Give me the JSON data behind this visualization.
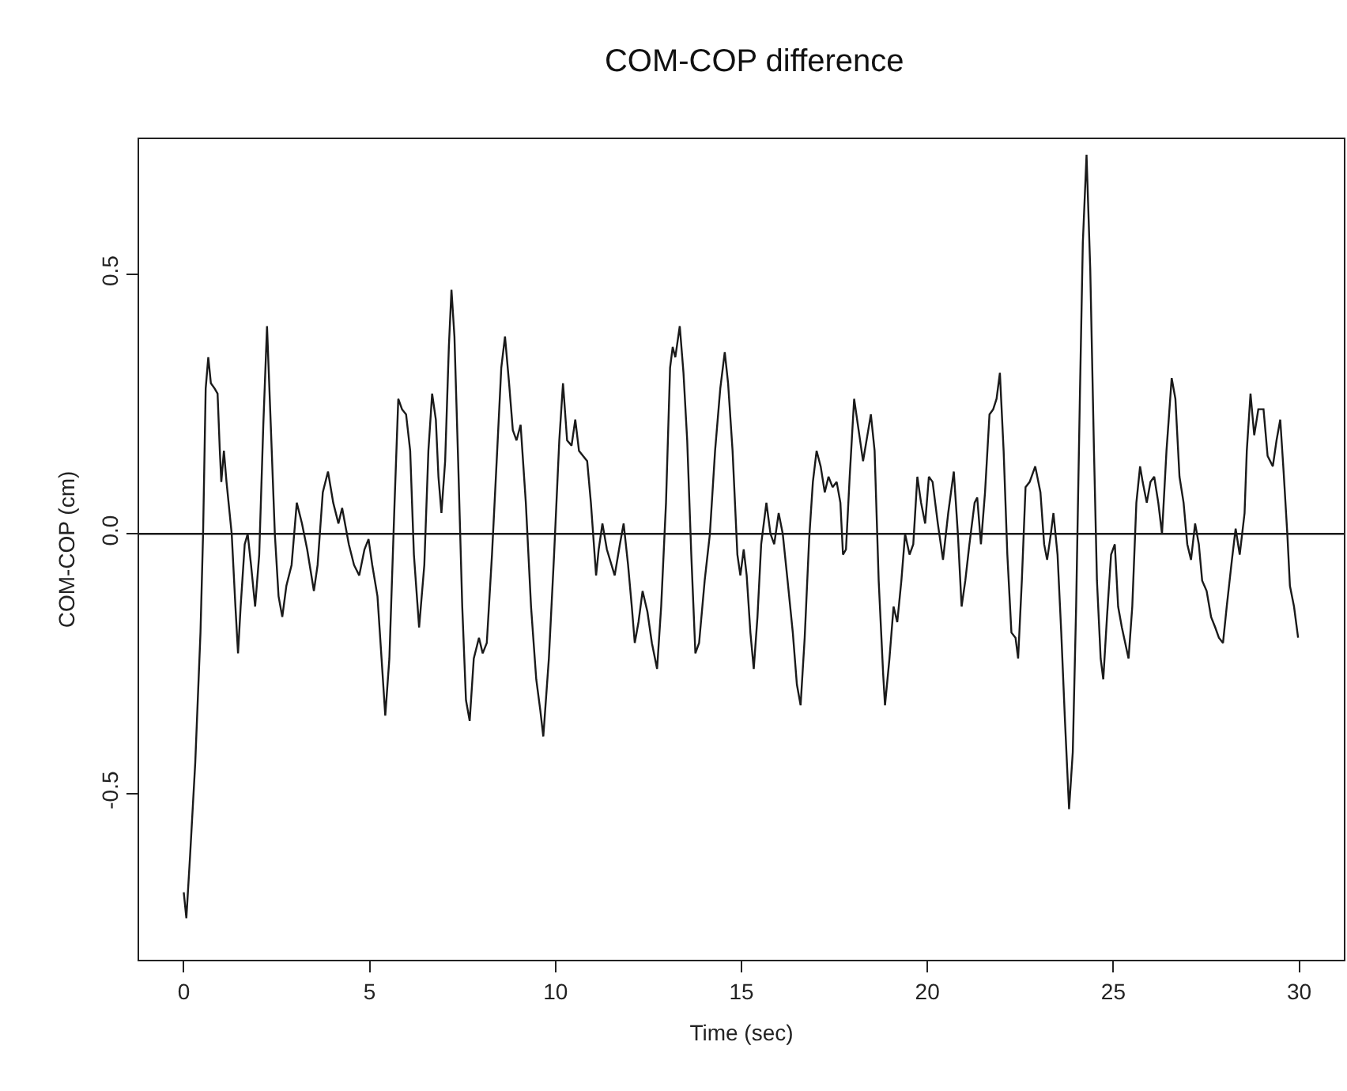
{
  "chart_data": {
    "type": "line",
    "title": "COM-COP difference",
    "xlabel": "Time (sec)",
    "ylabel": "COM-COP (cm)",
    "x": [
      0,
      0.07,
      0.17,
      0.31,
      0.45,
      0.52,
      0.59,
      0.66,
      0.73,
      0.83,
      0.91,
      0.97,
      1.01,
      1.08,
      1.15,
      1.29,
      1.39,
      1.46,
      1.53,
      1.64,
      1.72,
      1.81,
      1.92,
      2.03,
      2.14,
      2.24,
      2.34,
      2.45,
      2.55,
      2.65,
      2.76,
      2.9,
      3.04,
      3.18,
      3.32,
      3.5,
      3.6,
      3.74,
      3.88,
      4.02,
      4.16,
      4.26,
      4.44,
      4.58,
      4.72,
      4.86,
      4.97,
      5.07,
      5.21,
      5.32,
      5.42,
      5.53,
      5.67,
      5.77,
      5.87,
      5.98,
      6.09,
      6.19,
      6.33,
      6.47,
      6.58,
      6.68,
      6.78,
      6.85,
      6.93,
      7.03,
      7.13,
      7.2,
      7.28,
      7.38,
      7.49,
      7.59,
      7.69,
      7.8,
      7.94,
      8.04,
      8.15,
      8.29,
      8.43,
      8.54,
      8.64,
      8.75,
      8.85,
      8.95,
      9.06,
      9.2,
      9.34,
      9.48,
      9.59,
      9.67,
      9.82,
      9.96,
      10.1,
      10.2,
      10.31,
      10.43,
      10.53,
      10.63,
      10.74,
      10.85,
      10.95,
      11.09,
      11.16,
      11.26,
      11.38,
      11.59,
      11.73,
      11.83,
      11.95,
      12.05,
      12.13,
      12.23,
      12.34,
      12.47,
      12.59,
      12.73,
      12.84,
      12.97,
      13.08,
      13.15,
      13.22,
      13.34,
      13.44,
      13.54,
      13.65,
      13.76,
      13.86,
      14.01,
      14.15,
      14.29,
      14.43,
      14.55,
      14.64,
      14.76,
      14.89,
      14.97,
      15.06,
      15.14,
      15.24,
      15.33,
      15.43,
      15.53,
      15.67,
      15.78,
      15.88,
      16.0,
      16.11,
      16.24,
      16.38,
      16.49,
      16.59,
      16.7,
      16.82,
      16.92,
      17.02,
      17.13,
      17.24,
      17.34,
      17.45,
      17.56,
      17.66,
      17.73,
      17.81,
      17.91,
      18.03,
      18.13,
      18.27,
      18.41,
      18.48,
      18.58,
      18.69,
      18.81,
      18.86,
      18.98,
      19.09,
      19.19,
      19.3,
      19.4,
      19.52,
      19.62,
      19.73,
      19.83,
      19.94,
      20.04,
      20.14,
      20.28,
      20.42,
      20.56,
      20.71,
      20.82,
      20.92,
      21.02,
      21.13,
      21.27,
      21.34,
      21.44,
      21.55,
      21.67,
      21.77,
      21.86,
      21.95,
      22.05,
      22.15,
      22.26,
      22.37,
      22.44,
      22.54,
      22.64,
      22.75,
      22.9,
      23.04,
      23.14,
      23.22,
      23.32,
      23.39,
      23.5,
      23.6,
      23.7,
      23.81,
      23.91,
      24.0,
      24.1,
      24.18,
      24.28,
      24.38,
      24.48,
      24.56,
      24.66,
      24.73,
      24.83,
      24.94,
      25.04,
      25.13,
      25.23,
      25.32,
      25.41,
      25.51,
      25.62,
      25.72,
      25.79,
      25.9,
      26.0,
      26.1,
      26.21,
      26.31,
      26.43,
      26.57,
      26.67,
      26.78,
      26.89,
      26.99,
      27.09,
      27.2,
      27.3,
      27.39,
      27.51,
      27.63,
      27.74,
      27.84,
      27.95,
      28.05,
      28.19,
      28.29,
      28.4,
      28.53,
      28.59,
      28.69,
      28.79,
      28.9,
      29.04,
      29.15,
      29.29,
      29.39,
      29.49,
      29.58,
      29.68,
      29.75,
      29.86,
      29.97
    ],
    "values": [
      -0.69,
      -0.74,
      -0.62,
      -0.44,
      -0.19,
      0,
      0.28,
      0.34,
      0.29,
      0.28,
      0.27,
      0.16,
      0.1,
      0.16,
      0.1,
      0,
      -0.14,
      -0.23,
      -0.14,
      -0.02,
      0,
      -0.06,
      -0.14,
      -0.04,
      0.21,
      0.4,
      0.21,
      0,
      -0.12,
      -0.16,
      -0.1,
      -0.06,
      0.06,
      0.02,
      -0.03,
      -0.11,
      -0.06,
      0.08,
      0.12,
      0.06,
      0.02,
      0.05,
      -0.02,
      -0.06,
      -0.08,
      -0.03,
      -0.01,
      -0.06,
      -0.12,
      -0.24,
      -0.35,
      -0.24,
      0.06,
      0.26,
      0.24,
      0.23,
      0.16,
      -0.04,
      -0.18,
      -0.06,
      0.16,
      0.27,
      0.22,
      0.11,
      0.04,
      0.14,
      0.36,
      0.47,
      0.38,
      0.14,
      -0.14,
      -0.32,
      -0.36,
      -0.24,
      -0.2,
      -0.23,
      -0.21,
      -0.04,
      0.16,
      0.32,
      0.38,
      0.29,
      0.2,
      0.18,
      0.21,
      0.06,
      -0.14,
      -0.28,
      -0.34,
      -0.39,
      -0.24,
      -0.04,
      0.18,
      0.29,
      0.18,
      0.17,
      0.22,
      0.16,
      0.15,
      0.14,
      0.06,
      -0.08,
      -0.03,
      0.02,
      -0.03,
      -0.08,
      -0.02,
      0.02,
      -0.06,
      -0.14,
      -0.21,
      -0.17,
      -0.11,
      -0.15,
      -0.21,
      -0.26,
      -0.14,
      0.06,
      0.32,
      0.36,
      0.34,
      0.4,
      0.31,
      0.18,
      -0.04,
      -0.23,
      -0.21,
      -0.09,
      0,
      0.16,
      0.28,
      0.35,
      0.29,
      0.16,
      -0.04,
      -0.08,
      -0.03,
      -0.08,
      -0.19,
      -0.26,
      -0.16,
      -0.02,
      0.06,
      0,
      -0.02,
      0.04,
      0,
      -0.09,
      -0.19,
      -0.29,
      -0.33,
      -0.2,
      -0.01,
      0.1,
      0.16,
      0.13,
      0.08,
      0.11,
      0.09,
      0.1,
      0.06,
      -0.04,
      -0.03,
      0.11,
      0.26,
      0.21,
      0.14,
      0.2,
      0.23,
      0.16,
      -0.09,
      -0.27,
      -0.33,
      -0.24,
      -0.14,
      -0.17,
      -0.09,
      0,
      -0.04,
      -0.02,
      0.11,
      0.06,
      0.02,
      0.11,
      0.1,
      0.02,
      -0.05,
      0.04,
      0.12,
      0,
      -0.14,
      -0.09,
      -0.02,
      0.06,
      0.07,
      -0.02,
      0.08,
      0.23,
      0.24,
      0.26,
      0.31,
      0.16,
      -0.04,
      -0.19,
      -0.2,
      -0.24,
      -0.09,
      0.09,
      0.1,
      0.13,
      0.08,
      -0.02,
      -0.05,
      0,
      0.04,
      -0.04,
      -0.19,
      -0.36,
      -0.53,
      -0.42,
      -0.14,
      0.26,
      0.56,
      0.73,
      0.51,
      0.16,
      -0.09,
      -0.24,
      -0.28,
      -0.16,
      -0.04,
      -0.02,
      -0.14,
      -0.18,
      -0.21,
      -0.24,
      -0.14,
      0.06,
      0.13,
      0.1,
      0.06,
      0.1,
      0.11,
      0.06,
      0,
      0.16,
      0.3,
      0.26,
      0.11,
      0.06,
      -0.02,
      -0.05,
      0.02,
      -0.02,
      -0.09,
      -0.11,
      -0.16,
      -0.18,
      -0.2,
      -0.21,
      -0.14,
      -0.05,
      0.01,
      -0.04,
      0.04,
      0.16,
      0.27,
      0.19,
      0.24,
      0.24,
      0.15,
      0.13,
      0.18,
      0.22,
      0.12,
      0,
      -0.1,
      -0.14,
      -0.2
    ],
    "color": "#1a1a1a",
    "xlim": [
      -1.2,
      31.2
    ],
    "ylim": [
      -0.82,
      0.76
    ],
    "xticks": [
      0,
      5,
      10,
      15,
      20,
      25,
      30
    ],
    "yticks": [
      {
        "value": -0.5,
        "label": "-0.5"
      },
      {
        "value": 0,
        "label": "0.0"
      },
      {
        "value": 0.5,
        "label": "0.5"
      }
    ],
    "ref_lines": [
      {
        "axis": "y",
        "value": 0,
        "color": "#1a1a1a"
      }
    ]
  }
}
